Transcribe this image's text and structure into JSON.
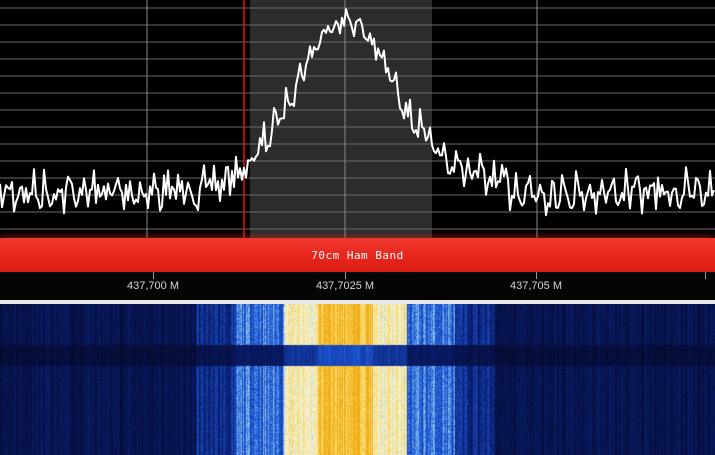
{
  "band": {
    "label": "70cm Ham Band"
  },
  "frequency_axis": {
    "labels": [
      "437,700 M",
      "437,7025 M",
      "437,705 M"
    ]
  },
  "colors": {
    "band_bar": "#e8261c",
    "trace": "#ffffff",
    "marker": "#e01010",
    "waterfall_low": "#08103a",
    "waterfall_high": "#ffd020"
  }
}
